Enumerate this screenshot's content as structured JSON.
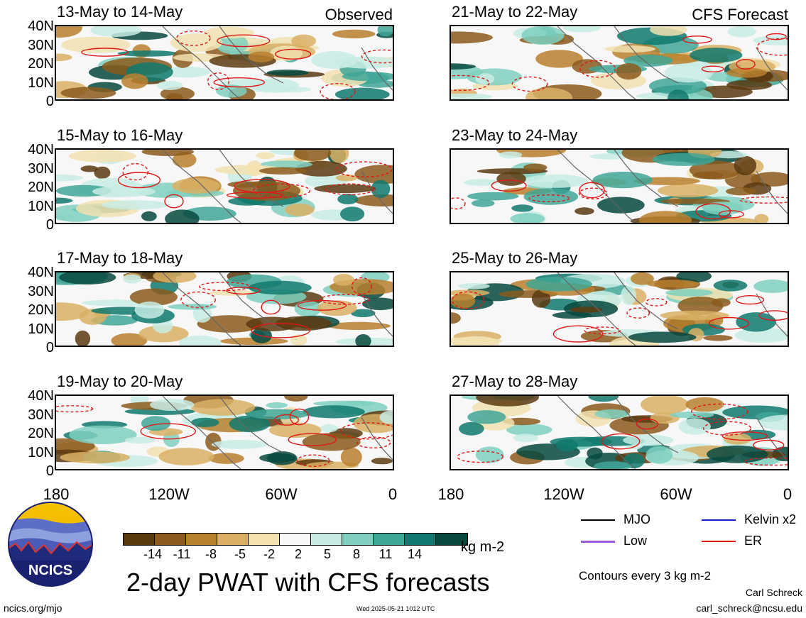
{
  "observed_label": "Observed",
  "forecast_label": "CFS Forecast",
  "panels": [
    {
      "title": "13-May to 14-May",
      "type": "observed"
    },
    {
      "title": "15-May to 16-May",
      "type": "observed"
    },
    {
      "title": "17-May to 18-May",
      "type": "observed"
    },
    {
      "title": "19-May to 20-May",
      "type": "observed"
    },
    {
      "title": "21-May to 22-May",
      "type": "forecast"
    },
    {
      "title": "23-May to 24-May",
      "type": "forecast"
    },
    {
      "title": "25-May to 26-May",
      "type": "forecast"
    },
    {
      "title": "27-May to 28-May",
      "type": "forecast"
    }
  ],
  "y_ticks": [
    "40N",
    "30N",
    "20N",
    "10N",
    "0"
  ],
  "x_ticks": [
    "180",
    "120W",
    "60W",
    "0"
  ],
  "colorbar": {
    "colors": [
      "#5c3a10",
      "#8b5a1c",
      "#b8802e",
      "#d9b064",
      "#f2e2b0",
      "#f7f7f7",
      "#c8ece4",
      "#7fd0c0",
      "#3fa696",
      "#11796d",
      "#07493f"
    ],
    "labels": [
      "-14",
      "-11",
      "-8",
      "-5",
      "-2",
      "2",
      "5",
      "8",
      "11",
      "14"
    ],
    "units": "kg m-2"
  },
  "legend": [
    {
      "label": "MJO",
      "color": "#000000"
    },
    {
      "label": "Kelvin x2",
      "color": "#1a1acc"
    },
    {
      "label": "Low",
      "color": "#9a5cd6"
    },
    {
      "label": "ER",
      "color": "#e01818"
    }
  ],
  "contour_note": "Contours every 3 kg m-2",
  "main_title": "2-day PWAT with CFS forecasts",
  "author": "Carl Schreck",
  "email": "carl_schreck@ncsu.edu",
  "site": "ncics.org/mjo",
  "timestamp": "Wed 2025-05-21 1012 UTC",
  "logo_text": "NCICS"
}
